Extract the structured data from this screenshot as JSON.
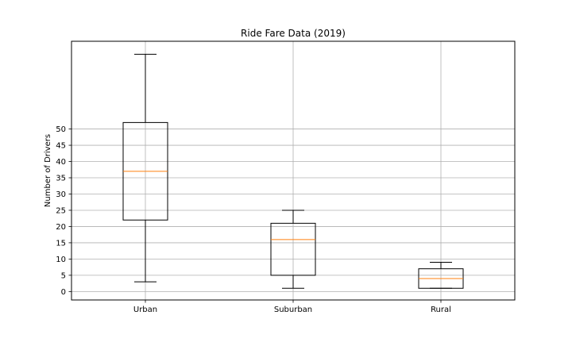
{
  "chart_data": {
    "type": "box",
    "title": "Ride Fare Data (2019)",
    "xlabel": "",
    "ylabel": "Number of Drivers",
    "categories": [
      "Urban",
      "Suburban",
      "Rural"
    ],
    "boxes": [
      {
        "category": "Urban",
        "whisker_low": 3,
        "q1": 22,
        "median": 37,
        "q3": 52,
        "whisker_high": 73
      },
      {
        "category": "Suburban",
        "whisker_low": 1,
        "q1": 5,
        "median": 16,
        "q3": 21,
        "whisker_high": 25
      },
      {
        "category": "Rural",
        "whisker_low": 1,
        "q1": 1,
        "median": 4,
        "q3": 7,
        "whisker_high": 9
      }
    ],
    "yticks": [
      0,
      5,
      10,
      15,
      20,
      25,
      30,
      35,
      40,
      45,
      50
    ],
    "ylim": [
      -2.6,
      77
    ],
    "grid": true,
    "colors": {
      "box": "#000000",
      "median": "#ff7f0e",
      "grid": "#b0b0b0"
    }
  }
}
